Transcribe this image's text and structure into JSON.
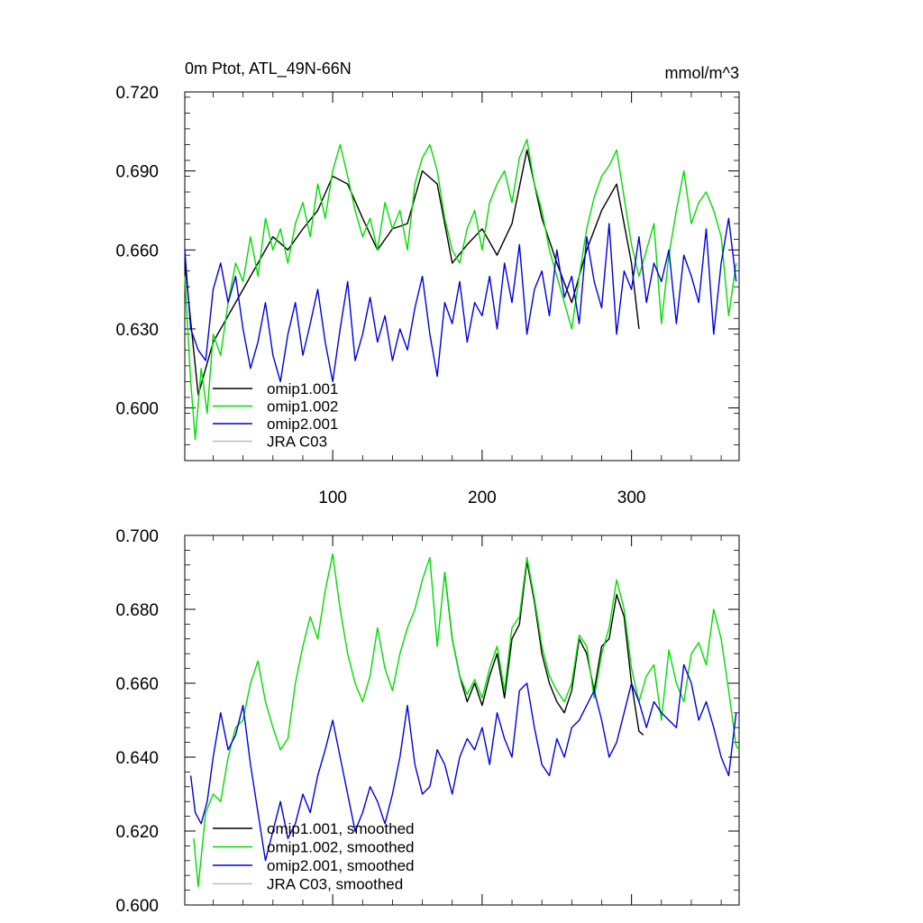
{
  "chart_data": [
    {
      "type": "line",
      "title_left": "0m Ptot, ATL_49N-66N",
      "title_right": "mmol/m^3",
      "xlabel": "",
      "ylabel": "",
      "xlim": [
        1,
        372
      ],
      "ylim": [
        0.58,
        0.72
      ],
      "yticks": [
        0.6,
        0.63,
        0.66,
        0.69,
        0.72
      ],
      "ytick_labels": [
        "0.600",
        "0.630",
        "0.660",
        "0.690",
        "0.720"
      ],
      "xticks": [
        100,
        200,
        300
      ],
      "xtick_labels": [
        "100",
        "200",
        "300"
      ],
      "legend_position": "bottom-left",
      "legend": [
        "omip1.001",
        "omip1.002",
        "omip2.001",
        "JRA C03"
      ],
      "series": [
        {
          "name": "omip1.001",
          "color": "#000000",
          "x": [
            1,
            10,
            20,
            30,
            40,
            50,
            60,
            70,
            80,
            90,
            100,
            110,
            120,
            130,
            140,
            150,
            160,
            170,
            180,
            190,
            200,
            210,
            220,
            230,
            240,
            250,
            260,
            270,
            280,
            290,
            300,
            305
          ],
          "values": [
            0.655,
            0.605,
            0.625,
            0.635,
            0.645,
            0.655,
            0.665,
            0.66,
            0.668,
            0.675,
            0.688,
            0.685,
            0.672,
            0.66,
            0.668,
            0.67,
            0.69,
            0.685,
            0.655,
            0.662,
            0.668,
            0.658,
            0.67,
            0.698,
            0.672,
            0.655,
            0.64,
            0.66,
            0.675,
            0.685,
            0.655,
            0.63
          ]
        },
        {
          "name": "omip1.002",
          "color": "#00dd00",
          "x": [
            1,
            5,
            8,
            12,
            16,
            20,
            25,
            30,
            35,
            40,
            45,
            50,
            55,
            60,
            65,
            70,
            75,
            80,
            85,
            90,
            95,
            100,
            105,
            110,
            115,
            120,
            125,
            130,
            135,
            140,
            145,
            150,
            155,
            160,
            165,
            170,
            175,
            180,
            185,
            190,
            195,
            200,
            205,
            210,
            215,
            220,
            225,
            230,
            235,
            240,
            245,
            250,
            255,
            260,
            265,
            270,
            275,
            280,
            285,
            290,
            295,
            300,
            305,
            310,
            315,
            320,
            325,
            330,
            335,
            340,
            345,
            350,
            355,
            360,
            365,
            370
          ],
          "values": [
            0.65,
            0.61,
            0.588,
            0.615,
            0.598,
            0.628,
            0.62,
            0.64,
            0.655,
            0.648,
            0.665,
            0.65,
            0.672,
            0.66,
            0.668,
            0.655,
            0.67,
            0.678,
            0.665,
            0.685,
            0.672,
            0.69,
            0.7,
            0.688,
            0.675,
            0.665,
            0.672,
            0.66,
            0.678,
            0.668,
            0.675,
            0.66,
            0.685,
            0.695,
            0.7,
            0.69,
            0.672,
            0.66,
            0.655,
            0.668,
            0.675,
            0.66,
            0.678,
            0.685,
            0.69,
            0.678,
            0.695,
            0.702,
            0.685,
            0.675,
            0.66,
            0.65,
            0.64,
            0.63,
            0.65,
            0.668,
            0.68,
            0.688,
            0.692,
            0.698,
            0.68,
            0.662,
            0.65,
            0.66,
            0.67,
            0.632,
            0.658,
            0.675,
            0.69,
            0.67,
            0.678,
            0.682,
            0.675,
            0.665,
            0.635,
            0.655
          ]
        },
        {
          "name": "omip2.001",
          "color": "#0000dd",
          "x": [
            1,
            5,
            10,
            15,
            20,
            25,
            30,
            35,
            40,
            45,
            50,
            55,
            60,
            65,
            70,
            75,
            80,
            85,
            90,
            95,
            100,
            105,
            110,
            115,
            120,
            125,
            130,
            135,
            140,
            145,
            150,
            155,
            160,
            165,
            170,
            175,
            180,
            185,
            190,
            195,
            200,
            205,
            210,
            215,
            220,
            225,
            230,
            235,
            240,
            245,
            250,
            255,
            260,
            265,
            270,
            275,
            280,
            285,
            290,
            295,
            300,
            305,
            310,
            315,
            320,
            325,
            330,
            335,
            340,
            345,
            350,
            355,
            360,
            365,
            370
          ],
          "values": [
            0.66,
            0.63,
            0.622,
            0.618,
            0.645,
            0.655,
            0.64,
            0.65,
            0.63,
            0.615,
            0.625,
            0.64,
            0.62,
            0.61,
            0.628,
            0.64,
            0.62,
            0.632,
            0.645,
            0.625,
            0.61,
            0.63,
            0.648,
            0.618,
            0.628,
            0.642,
            0.625,
            0.635,
            0.618,
            0.63,
            0.622,
            0.638,
            0.65,
            0.628,
            0.612,
            0.64,
            0.632,
            0.648,
            0.625,
            0.64,
            0.635,
            0.65,
            0.63,
            0.655,
            0.64,
            0.662,
            0.628,
            0.645,
            0.652,
            0.635,
            0.66,
            0.642,
            0.65,
            0.632,
            0.665,
            0.648,
            0.638,
            0.67,
            0.628,
            0.652,
            0.645,
            0.665,
            0.64,
            0.655,
            0.648,
            0.66,
            0.632,
            0.658,
            0.65,
            0.64,
            0.668,
            0.628,
            0.655,
            0.672,
            0.648
          ]
        },
        {
          "name": "JRA C03",
          "color": "#bbbbbb",
          "x": [],
          "values": []
        }
      ]
    },
    {
      "type": "line",
      "title_left": "",
      "title_right": "",
      "xlabel": "",
      "ylabel": "",
      "xlim": [
        1,
        372
      ],
      "ylim": [
        0.6,
        0.7
      ],
      "yticks": [
        0.6,
        0.62,
        0.64,
        0.66,
        0.68,
        0.7
      ],
      "ytick_labels": [
        "0.600",
        "0.620",
        "0.640",
        "0.660",
        "0.680",
        "0.700"
      ],
      "xticks": [
        100,
        200,
        300
      ],
      "xtick_labels": [],
      "legend_position": "bottom-left",
      "legend": [
        "omip1.001, smoothed",
        "omip1.002, smoothed",
        "omip2.001, smoothed",
        "JRA C03, smoothed"
      ],
      "series": [
        {
          "name": "omip1.001, smoothed",
          "color": "#000000",
          "x": [
            175,
            180,
            185,
            190,
            195,
            200,
            205,
            210,
            215,
            220,
            225,
            230,
            235,
            240,
            245,
            250,
            255,
            260,
            265,
            270,
            275,
            280,
            285,
            290,
            295,
            300,
            305,
            308
          ],
          "values": [
            0.69,
            0.672,
            0.662,
            0.655,
            0.66,
            0.654,
            0.662,
            0.668,
            0.656,
            0.672,
            0.676,
            0.693,
            0.682,
            0.668,
            0.66,
            0.655,
            0.652,
            0.658,
            0.672,
            0.668,
            0.658,
            0.67,
            0.672,
            0.684,
            0.678,
            0.66,
            0.647,
            0.646
          ]
        },
        {
          "name": "omip1.002, smoothed",
          "color": "#00dd00",
          "x": [
            7,
            10,
            15,
            20,
            25,
            30,
            35,
            40,
            45,
            50,
            55,
            60,
            65,
            70,
            75,
            80,
            85,
            90,
            95,
            100,
            105,
            110,
            115,
            120,
            125,
            130,
            135,
            140,
            145,
            150,
            155,
            160,
            165,
            170,
            175,
            180,
            185,
            190,
            195,
            200,
            205,
            210,
            215,
            220,
            225,
            230,
            235,
            240,
            245,
            250,
            255,
            260,
            265,
            270,
            275,
            280,
            285,
            290,
            295,
            300,
            305,
            310,
            315,
            320,
            325,
            330,
            335,
            340,
            345,
            350,
            355,
            360,
            365,
            370,
            372
          ],
          "values": [
            0.618,
            0.605,
            0.625,
            0.63,
            0.628,
            0.64,
            0.648,
            0.65,
            0.66,
            0.666,
            0.655,
            0.648,
            0.642,
            0.645,
            0.66,
            0.67,
            0.678,
            0.672,
            0.685,
            0.695,
            0.68,
            0.668,
            0.66,
            0.655,
            0.662,
            0.675,
            0.664,
            0.658,
            0.668,
            0.675,
            0.68,
            0.688,
            0.694,
            0.67,
            0.69,
            0.672,
            0.662,
            0.657,
            0.661,
            0.656,
            0.664,
            0.67,
            0.658,
            0.675,
            0.678,
            0.694,
            0.683,
            0.67,
            0.662,
            0.658,
            0.655,
            0.66,
            0.673,
            0.67,
            0.656,
            0.668,
            0.675,
            0.688,
            0.68,
            0.664,
            0.655,
            0.662,
            0.665,
            0.65,
            0.669,
            0.66,
            0.655,
            0.668,
            0.671,
            0.665,
            0.68,
            0.672,
            0.658,
            0.643,
            0.642
          ]
        },
        {
          "name": "omip2.001, smoothed",
          "color": "#0000dd",
          "x": [
            5,
            8,
            12,
            16,
            20,
            25,
            30,
            35,
            40,
            45,
            50,
            55,
            60,
            65,
            70,
            75,
            80,
            85,
            90,
            95,
            100,
            105,
            110,
            115,
            120,
            125,
            130,
            135,
            140,
            145,
            150,
            155,
            160,
            165,
            170,
            175,
            180,
            185,
            190,
            195,
            200,
            205,
            210,
            215,
            220,
            225,
            230,
            235,
            240,
            245,
            250,
            255,
            260,
            265,
            270,
            275,
            280,
            285,
            290,
            295,
            300,
            305,
            310,
            315,
            320,
            325,
            330,
            335,
            340,
            345,
            350,
            355,
            360,
            365,
            370
          ],
          "values": [
            0.635,
            0.625,
            0.622,
            0.628,
            0.64,
            0.652,
            0.642,
            0.646,
            0.654,
            0.638,
            0.625,
            0.612,
            0.62,
            0.628,
            0.618,
            0.622,
            0.63,
            0.625,
            0.635,
            0.642,
            0.65,
            0.64,
            0.63,
            0.62,
            0.625,
            0.632,
            0.628,
            0.622,
            0.63,
            0.64,
            0.654,
            0.638,
            0.63,
            0.632,
            0.642,
            0.638,
            0.63,
            0.64,
            0.645,
            0.642,
            0.648,
            0.638,
            0.652,
            0.645,
            0.64,
            0.658,
            0.66,
            0.648,
            0.638,
            0.635,
            0.645,
            0.64,
            0.648,
            0.65,
            0.654,
            0.658,
            0.65,
            0.64,
            0.644,
            0.652,
            0.66,
            0.655,
            0.648,
            0.655,
            0.652,
            0.65,
            0.648,
            0.665,
            0.66,
            0.65,
            0.655,
            0.648,
            0.64,
            0.635,
            0.652
          ]
        },
        {
          "name": "JRA C03, smoothed",
          "color": "#bbbbbb",
          "x": [],
          "values": []
        }
      ]
    }
  ]
}
